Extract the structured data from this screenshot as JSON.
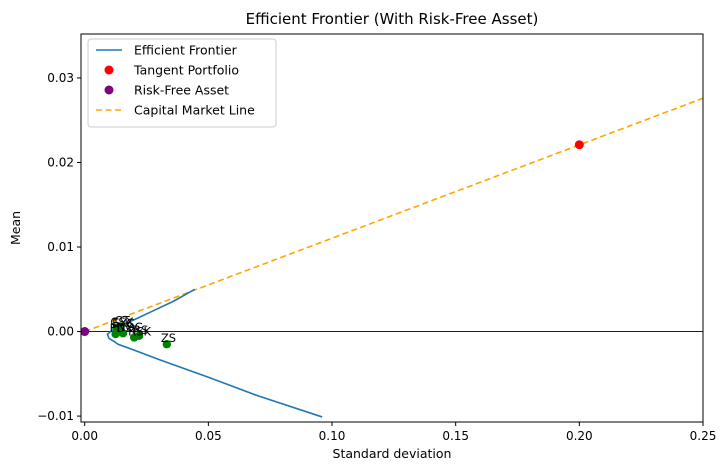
{
  "chart_data": {
    "type": "line",
    "title": "Efficient Frontier (With Risk-Free Asset)",
    "xlabel": "Standard deviation",
    "ylabel": "Mean",
    "xlim": [
      -0.0015,
      0.25
    ],
    "ylim": [
      -0.0107,
      0.0352
    ],
    "xticks": [
      0.0,
      0.05,
      0.1,
      0.15,
      0.2,
      0.25
    ],
    "xtick_labels": [
      "0.00",
      "0.05",
      "0.10",
      "0.15",
      "0.20",
      "0.25"
    ],
    "yticks": [
      -0.01,
      0.0,
      0.01,
      0.02,
      0.03
    ],
    "ytick_labels": [
      "−0.01",
      "0.00",
      "0.01",
      "0.02",
      "0.03"
    ],
    "grid": false,
    "legend_position": "top-left",
    "colors": {
      "frontier": "#1f77b4",
      "tangent": "#ff0000",
      "risk_free": "#800080",
      "cml": "#ffa500",
      "assets": "#008000",
      "zero_line": "#000000"
    },
    "series": [
      {
        "name": "Efficient Frontier",
        "kind": "line",
        "x": [
          0.0445,
          0.036,
          0.028,
          0.02,
          0.014,
          0.0105,
          0.0092,
          0.0098,
          0.012,
          0.0135,
          0.02,
          0.03,
          0.05,
          0.07,
          0.096
        ],
        "y": [
          0.005,
          0.0036,
          0.0025,
          0.0014,
          0.0006,
          0.0,
          -0.0003,
          -0.0008,
          -0.0012,
          -0.0015,
          -0.0022,
          -0.0033,
          -0.0054,
          -0.0076,
          -0.0101
        ]
      },
      {
        "name": "Tangent Portfolio",
        "kind": "point",
        "x": [
          0.2
        ],
        "y": [
          0.0221
        ]
      },
      {
        "name": "Risk-Free Asset",
        "kind": "point",
        "x": [
          0.0
        ],
        "y": [
          0.0
        ]
      },
      {
        "name": "Capital Market Line",
        "kind": "dashed-line",
        "x": [
          0.0,
          0.25
        ],
        "y": [
          0.0,
          0.0276
        ]
      }
    ],
    "assets": [
      {
        "label": "CSX",
        "x": 0.0128,
        "y": 0.0004
      },
      {
        "label": "EXC",
        "x": 0.0135,
        "y": 0.0003
      },
      {
        "label": "CT",
        "x": 0.0145,
        "y": 0.0006
      },
      {
        "label": "FDX",
        "x": 0.0125,
        "y": -0.0003
      },
      {
        "label": "NOC",
        "x": 0.0155,
        "y": -0.0002
      },
      {
        "label": "RSK",
        "x": 0.02,
        "y": -0.0007
      },
      {
        "label": "RS",
        "x": 0.022,
        "y": -0.0005
      },
      {
        "label": "ZS",
        "x": 0.0332,
        "y": -0.0015
      }
    ],
    "legend": [
      {
        "label": "Efficient Frontier",
        "symbol": "line"
      },
      {
        "label": "Tangent Portfolio",
        "symbol": "dot-red"
      },
      {
        "label": "Risk-Free Asset",
        "symbol": "dot-purple"
      },
      {
        "label": "Capital Market Line",
        "symbol": "dashed"
      }
    ]
  }
}
